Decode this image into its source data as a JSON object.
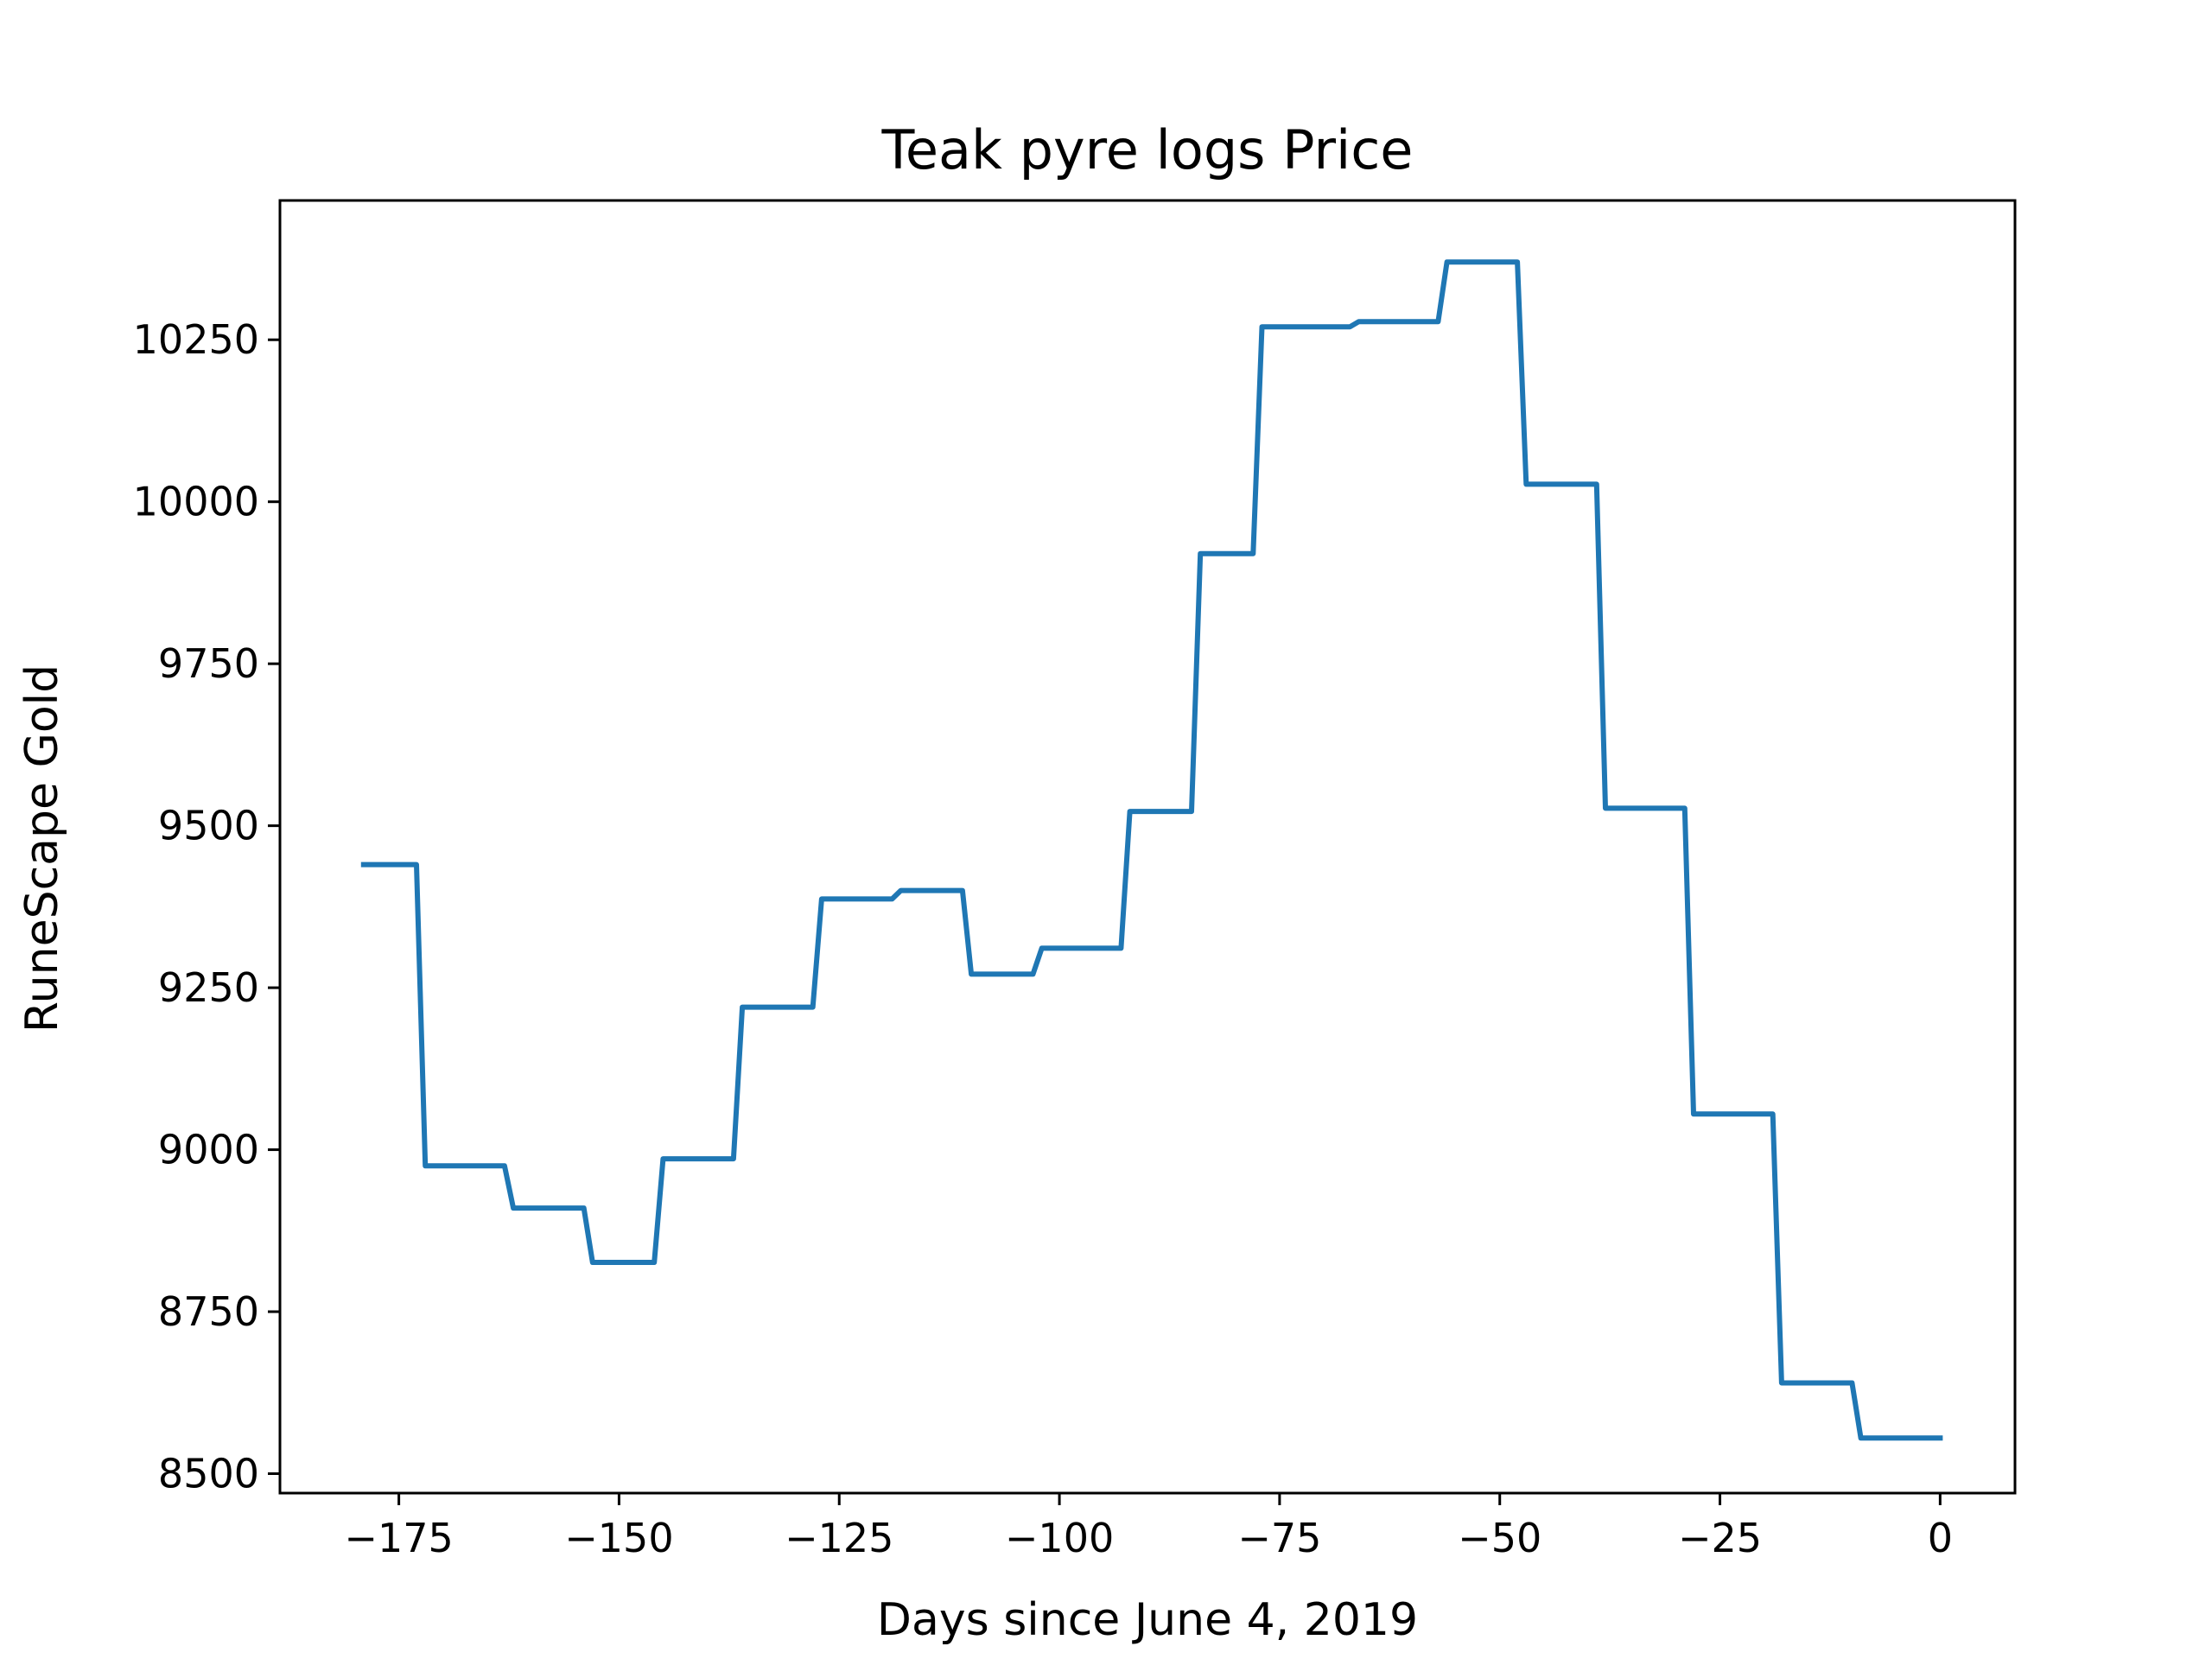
{
  "chart_data": {
    "type": "line",
    "title": "Teak pyre logs Price",
    "xlabel": "Days since June 4, 2019",
    "ylabel": "RuneScape Gold",
    "xlim": [
      -188.5,
      8.5
    ],
    "ylim": [
      8470,
      10465
    ],
    "x_ticks": [
      -175,
      -150,
      -125,
      -100,
      -75,
      -50,
      -25,
      0
    ],
    "x_tick_labels": [
      "−175",
      "−150",
      "−125",
      "−100",
      "−75",
      "−50",
      "−25",
      "0"
    ],
    "y_ticks": [
      8500,
      8750,
      9000,
      9250,
      9500,
      9750,
      10000,
      10250
    ],
    "y_tick_labels": [
      "8500",
      "8750",
      "9000",
      "9250",
      "9500",
      "9750",
      "10000",
      "10250"
    ],
    "grid": false,
    "color": "#1f77b4",
    "series": [
      {
        "x": [
          -179,
          -173,
          -172,
          -163,
          -162,
          -154,
          -153,
          -146,
          -145,
          -137,
          -136,
          -128,
          -127,
          -119,
          -118,
          -111,
          -110,
          -103,
          -102,
          -93,
          -92,
          -85,
          -84,
          -78,
          -77,
          -67,
          -66,
          -57,
          -56,
          -48,
          -47,
          -39,
          -38,
          -29,
          -28,
          -19,
          -18,
          -10,
          -9,
          0
        ],
        "y": [
          9440,
          9440,
          8975,
          8975,
          8910,
          8910,
          8826,
          8826,
          8986,
          8986,
          9220,
          9220,
          9387,
          9387,
          9400,
          9400,
          9271,
          9271,
          9311,
          9311,
          9522,
          9522,
          9920,
          9920,
          10270,
          10270,
          10278,
          10278,
          10370,
          10370,
          10027,
          10027,
          9527,
          9527,
          9055,
          9055,
          8640,
          8640,
          8555,
          8555
        ]
      }
    ]
  }
}
